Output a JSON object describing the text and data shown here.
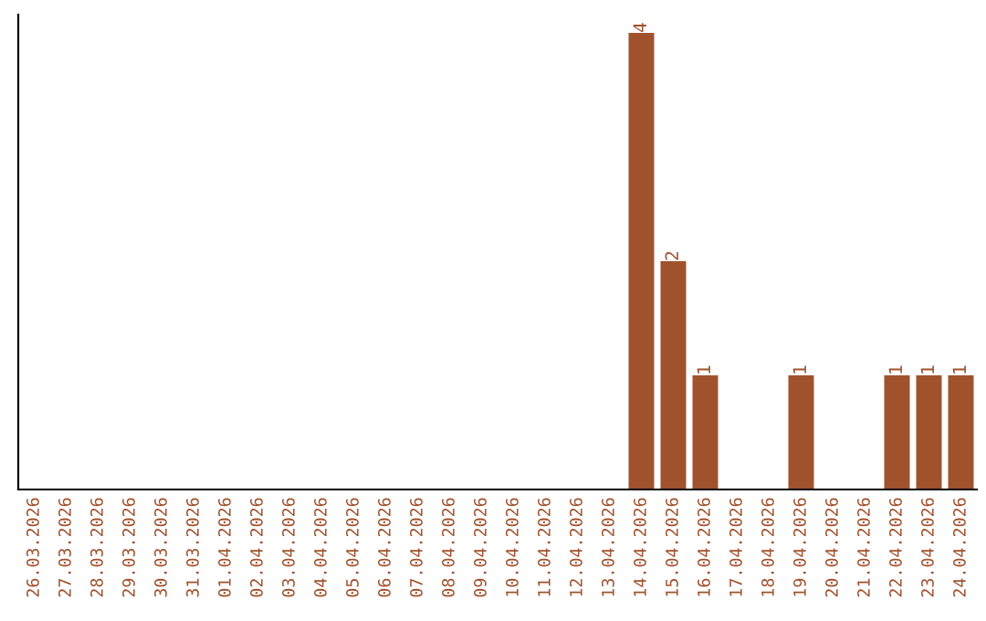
{
  "chart_data": {
    "type": "bar",
    "categories": [
      "26.03.2026",
      "27.03.2026",
      "28.03.2026",
      "29.03.2026",
      "30.03.2026",
      "31.03.2026",
      "01.04.2026",
      "02.04.2026",
      "03.04.2026",
      "04.04.2026",
      "05.04.2026",
      "06.04.2026",
      "07.04.2026",
      "08.04.2026",
      "09.04.2026",
      "10.04.2026",
      "11.04.2026",
      "12.04.2026",
      "13.04.2026",
      "14.04.2026",
      "15.04.2026",
      "16.04.2026",
      "17.04.2026",
      "18.04.2026",
      "19.04.2026",
      "20.04.2026",
      "21.04.2026",
      "22.04.2026",
      "23.04.2026",
      "24.04.2026"
    ],
    "values": [
      null,
      null,
      null,
      null,
      null,
      null,
      null,
      null,
      null,
      null,
      null,
      null,
      null,
      null,
      null,
      null,
      null,
      null,
      null,
      4,
      2,
      1,
      null,
      null,
      1,
      null,
      null,
      1,
      1,
      1
    ],
    "data_labels": true,
    "color": "#a0522d",
    "grid": false,
    "legend": false
  }
}
